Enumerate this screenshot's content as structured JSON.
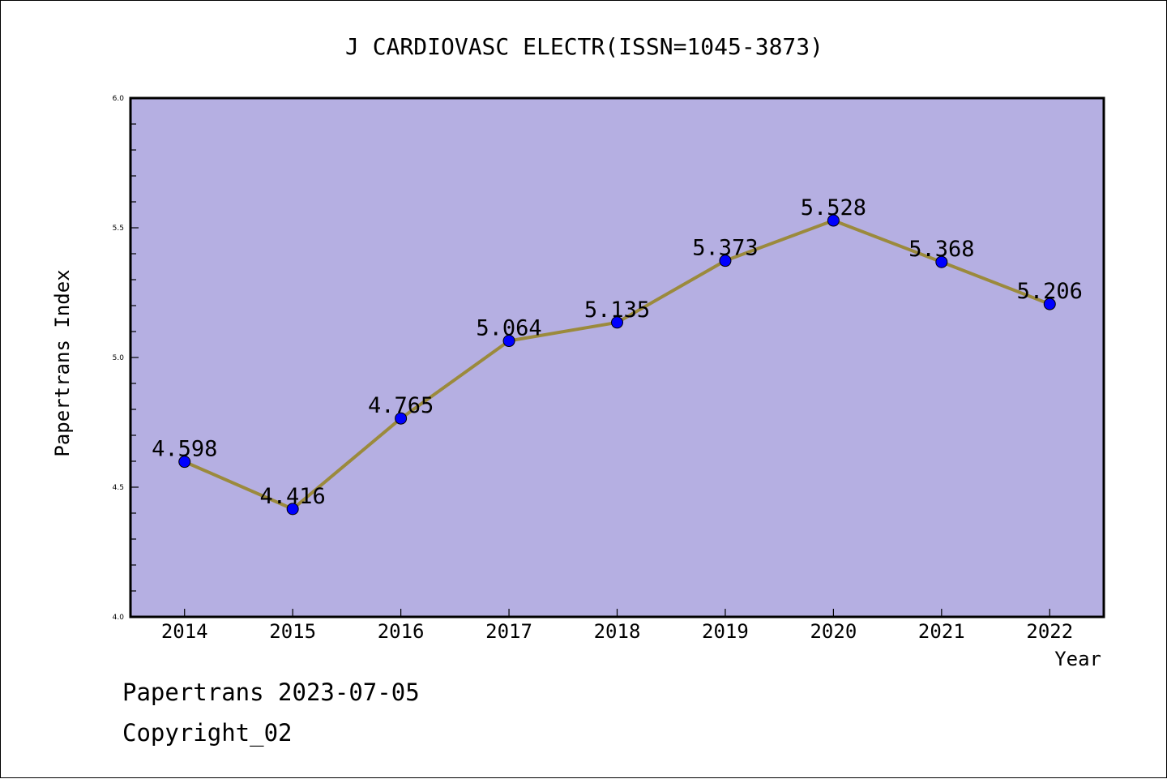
{
  "chart_data": {
    "type": "line",
    "title": "J CARDIOVASC ELECTR(ISSN=1045-3873)",
    "xlabel": "Year",
    "ylabel": "Papertrans Index",
    "categories": [
      "2014",
      "2015",
      "2016",
      "2017",
      "2018",
      "2019",
      "2020",
      "2021",
      "2022"
    ],
    "series": [
      {
        "values": [
          4.598,
          4.416,
          4.765,
          5.064,
          5.135,
          5.373,
          5.528,
          5.368,
          5.206
        ],
        "data_labels": [
          "4.598",
          "4.416",
          "4.765",
          "5.064",
          "5.135",
          "5.373",
          "5.528",
          "5.368",
          "5.206"
        ],
        "line_color": "#9B8A3C",
        "marker_color": "#0000FF"
      }
    ],
    "ylim": [
      4.0,
      6.0
    ],
    "y_ticks": [
      "4.0",
      "4.5",
      "5.0",
      "5.5",
      "6.0"
    ],
    "y_minor_step": 0.1,
    "grid": false,
    "plot_background": "#B5AFE2"
  },
  "footer": {
    "line1": "Papertrans 2023-07-05",
    "line2": "Copyright_02"
  }
}
